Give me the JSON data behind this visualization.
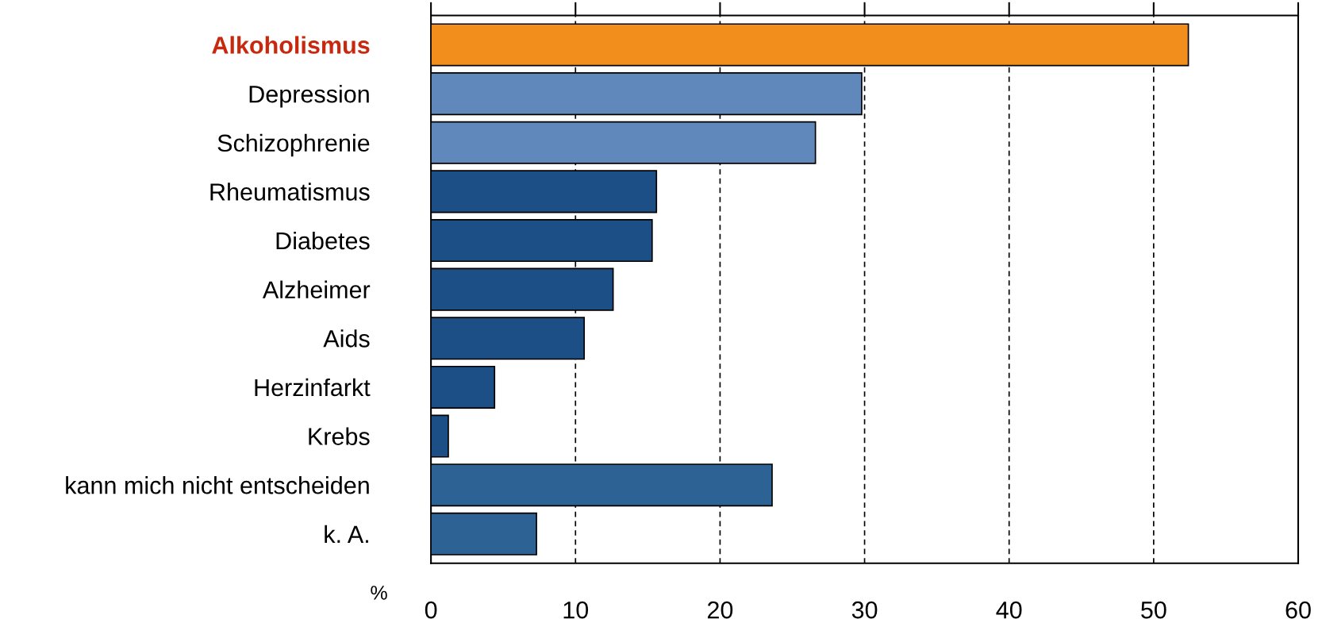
{
  "chart_data": {
    "type": "bar",
    "orientation": "horizontal",
    "xlabel": "%",
    "categories": [
      "Alkoholismus",
      "Depression",
      "Schizophrenie",
      "Rheumatismus",
      "Diabetes",
      "Alzheimer",
      "Aids",
      "Herzinfarkt",
      "Krebs",
      "kann mich nicht entscheiden",
      "k. A."
    ],
    "values": [
      52.4,
      29.8,
      26.6,
      15.6,
      15.3,
      12.6,
      10.6,
      4.4,
      1.2,
      23.6,
      7.3
    ],
    "colors": [
      "#f28e1c",
      "#6088ba",
      "#6088ba",
      "#1c4f85",
      "#1c4f85",
      "#1c4f85",
      "#1c4f85",
      "#1c4f85",
      "#1c4f85",
      "#2d6295",
      "#2d6295"
    ],
    "xlim": [
      0,
      60
    ],
    "xticks": [
      0,
      10,
      20,
      30,
      40,
      50,
      60
    ],
    "grid": "x",
    "legend": false
  }
}
